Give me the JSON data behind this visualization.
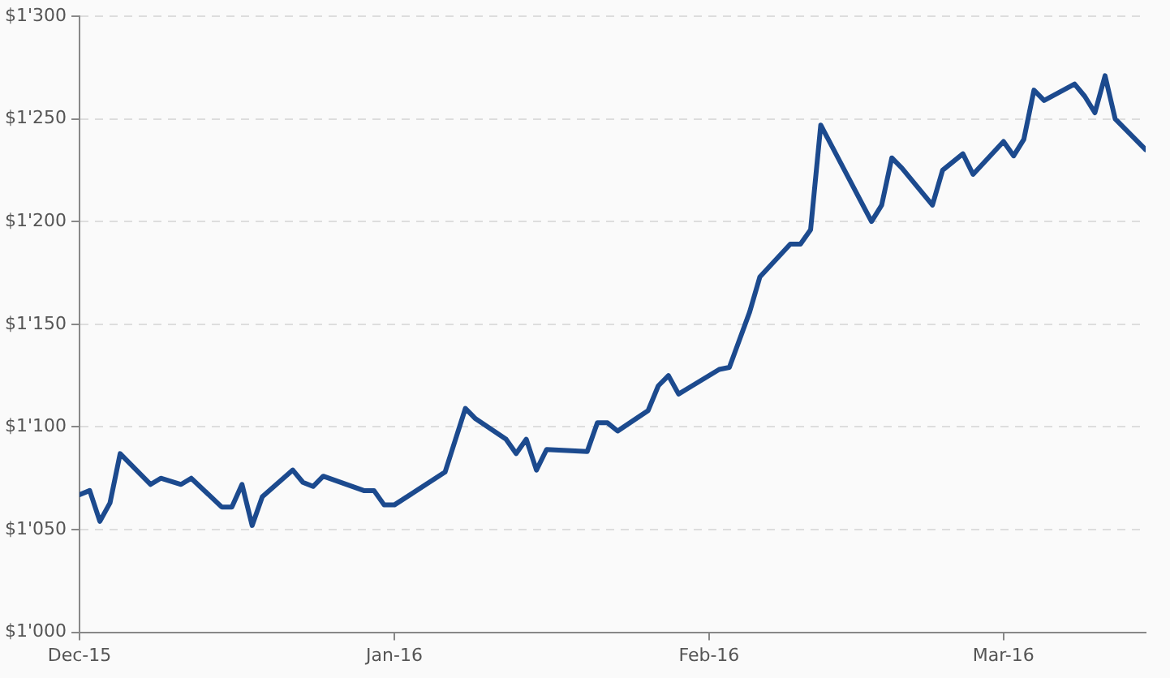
{
  "chart_data": {
    "type": "line",
    "x": [
      "2015-12-01",
      "2015-12-02",
      "2015-12-03",
      "2015-12-04",
      "2015-12-05",
      "2015-12-08",
      "2015-12-09",
      "2015-12-11",
      "2015-12-12",
      "2015-12-15",
      "2015-12-16",
      "2015-12-17",
      "2015-12-18",
      "2015-12-19",
      "2015-12-22",
      "2015-12-23",
      "2015-12-24",
      "2015-12-25",
      "2015-12-29",
      "2015-12-30",
      "2015-12-31",
      "2016-01-01",
      "2016-01-06",
      "2016-01-08",
      "2016-01-09",
      "2016-01-12",
      "2016-01-13",
      "2016-01-14",
      "2016-01-15",
      "2016-01-16",
      "2016-01-20",
      "2016-01-21",
      "2016-01-22",
      "2016-01-23",
      "2016-01-26",
      "2016-01-27",
      "2016-01-28",
      "2016-01-29",
      "2016-01-30",
      "2016-02-02",
      "2016-02-03",
      "2016-02-05",
      "2016-02-06",
      "2016-02-09",
      "2016-02-10",
      "2016-02-11",
      "2016-02-12",
      "2016-02-17",
      "2016-02-18",
      "2016-02-19",
      "2016-02-20",
      "2016-02-23",
      "2016-02-24",
      "2016-02-26",
      "2016-02-27",
      "2016-03-01",
      "2016-03-02",
      "2016-03-03",
      "2016-03-04",
      "2016-03-05",
      "2016-03-08",
      "2016-03-09",
      "2016-03-10",
      "2016-03-11",
      "2016-03-12",
      "2016-03-15"
    ],
    "series": [
      {
        "color": "#1c4a8e",
        "values": [
          1067,
          1069,
          1054,
          1063,
          1087,
          1072,
          1075,
          1072,
          1075,
          1061,
          1061,
          1072,
          1052,
          1066,
          1079,
          1073,
          1071,
          1076,
          1069,
          1069,
          1062,
          1062,
          1078,
          1109,
          1104,
          1094,
          1087,
          1094,
          1079,
          1089,
          1088,
          1102,
          1102,
          1098,
          1108,
          1120,
          1125,
          1116,
          1119,
          1128,
          1129,
          1156,
          1173,
          1189,
          1189,
          1196,
          1247,
          1200,
          1208,
          1231,
          1226,
          1208,
          1225,
          1233,
          1223,
          1239,
          1232,
          1240,
          1264,
          1259,
          1267,
          1261,
          1253,
          1271,
          1250,
          1235
        ]
      }
    ],
    "xlim": [
      "2015-12-01",
      "2016-03-15"
    ],
    "xticks": [
      {
        "value": "2015-12-01",
        "label": "Dec-15"
      },
      {
        "value": "2016-01-01",
        "label": "Jan-16"
      },
      {
        "value": "2016-02-01",
        "label": "Feb-16"
      },
      {
        "value": "2016-03-01",
        "label": "Mar-16"
      }
    ],
    "ylim": [
      1000,
      1300
    ],
    "yticks": [
      {
        "value": 1000,
        "label": "$1'000"
      },
      {
        "value": 1050,
        "label": "$1'050"
      },
      {
        "value": 1100,
        "label": "$1'100"
      },
      {
        "value": 1150,
        "label": "$1'150"
      },
      {
        "value": 1200,
        "label": "$1'200"
      },
      {
        "value": 1250,
        "label": "$1'250"
      },
      {
        "value": 1300,
        "label": "$1'300"
      }
    ],
    "grid": "y",
    "legend": false,
    "marker": "none",
    "line_style": "solid"
  }
}
